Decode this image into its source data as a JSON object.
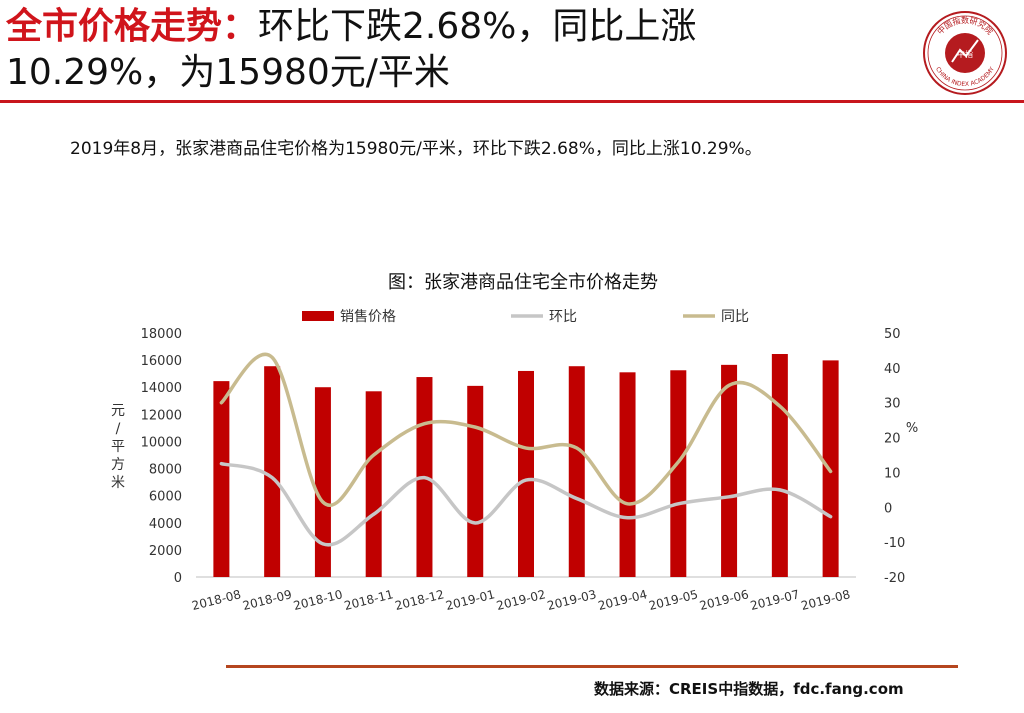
{
  "header": {
    "title_red": "全市价格走势：",
    "title_line1_rest": "环比下跌2.68%，同比上涨",
    "title_line2": "10.29%，为15980元/平米"
  },
  "logo": {
    "icon": "china-index-academy-seal-icon",
    "text_top": "中国指数研究院",
    "text_bottom": "CHINA INDEX ACADEMY",
    "center_text": "中指"
  },
  "summary": "2019年8月，张家港商品住宅价格为15980元/平米，环比下跌2.68%，同比上涨10.29%。",
  "footer": {
    "source": "数据来源：CREIS中指数据，fdc.fang.com"
  },
  "colors": {
    "accent": "#d0141b",
    "bar": "#c00000",
    "mom_line": "#c6c6c6",
    "yoy_line": "#c8bb8f",
    "footer_rule": "#b5461f"
  },
  "chart_data": {
    "type": "bar",
    "title": "图：张家港商品住宅全市价格走势",
    "categories": [
      "2018-08",
      "2018-09",
      "2018-10",
      "2018-11",
      "2018-12",
      "2019-01",
      "2019-02",
      "2019-03",
      "2019-04",
      "2019-05",
      "2019-06",
      "2019-07",
      "2019-08"
    ],
    "series": [
      {
        "name": "销售价格",
        "type": "bar",
        "axis": "left",
        "values": [
          14450,
          15550,
          14000,
          13700,
          14750,
          14100,
          15200,
          15550,
          15100,
          15250,
          15650,
          16450,
          15980
        ]
      },
      {
        "name": "环比",
        "type": "line",
        "axis": "right",
        "values": [
          12.5,
          8.5,
          -10.5,
          -2.0,
          8.5,
          -4.5,
          7.8,
          2.5,
          -3.0,
          1.0,
          3.0,
          5.0,
          -2.68
        ]
      },
      {
        "name": "同比",
        "type": "line",
        "axis": "right",
        "values": [
          30.0,
          43.0,
          1.5,
          15.0,
          24.0,
          23.0,
          17.0,
          17.0,
          1.0,
          13.0,
          35.0,
          29.0,
          10.29
        ]
      }
    ],
    "ylabel_left": "元/平方米",
    "ylabel_right": "%",
    "ylim_left": [
      0,
      18000
    ],
    "yticks_left": [
      "18000",
      "16000",
      "14000",
      "12000",
      "10000",
      "8000",
      "6000",
      "4000",
      "2000",
      "0"
    ],
    "ylim_right": [
      -20,
      50
    ],
    "yticks_right": [
      "50",
      "40",
      "30",
      "20",
      "10",
      "0",
      "-10",
      "-20"
    ],
    "legend": "top-center",
    "grid": false
  }
}
